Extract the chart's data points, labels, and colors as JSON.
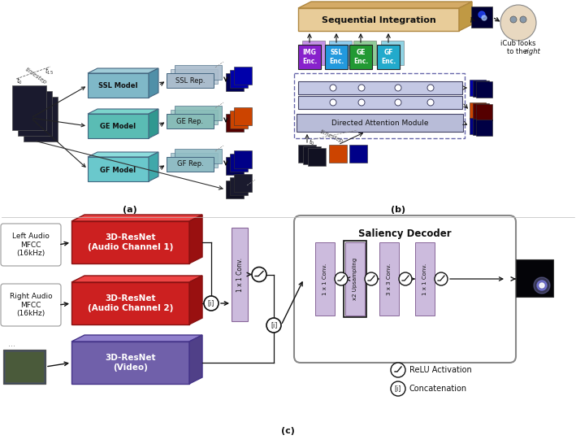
{
  "fig_width": 7.09,
  "fig_height": 5.46,
  "dpi": 100,
  "bg_color": "#ffffff",
  "panel_a": {
    "label": "(a)",
    "model_labels": [
      "SSL Model",
      "GE Model",
      "GF Model"
    ],
    "rep_labels": [
      "SSL Rep.",
      "GE Rep.",
      "GF Rep."
    ],
    "model_face": [
      "#7fb8c8",
      "#5abcb4",
      "#6ac8cc"
    ],
    "model_top": [
      "#a0ccd8",
      "#7cd4cc",
      "#8cdcdc"
    ],
    "model_side": [
      "#5090a8",
      "#309890",
      "#40a8aa"
    ],
    "rep_face": [
      "#aabccc",
      "#88bcb8",
      "#90bcc4"
    ],
    "feat_colors_ssl": [
      "#000044",
      "#000066"
    ],
    "feat_colors_ge": [
      "#660000",
      "#880000"
    ],
    "feat_colors_gf": [
      "#000044",
      "#000066"
    ],
    "feat_colors_img": [
      "#111122",
      "#222233"
    ]
  },
  "panel_b": {
    "label": "(b)",
    "seq_face": "#e8cc99",
    "seq_top": "#d4aa66",
    "seq_side": "#c09944",
    "enc_labels": [
      "IMG\nEnc.",
      "SSL\nEnc.",
      "GE\nEnc.",
      "GF\nEnc."
    ],
    "enc_colors": [
      "#8822cc",
      "#2299dd",
      "#229933",
      "#22aacc"
    ],
    "enc_top": [
      "#aa44ee",
      "#44bbff",
      "#44bb55",
      "#44ccee"
    ],
    "dam_face": "#b8bcd8",
    "lstm_face": "#c8cce8",
    "icub_text1": "iCub looks",
    "icub_text2": "to the",
    "icub_text3": "right"
  },
  "panel_c": {
    "label": "(c)",
    "audio1_label": "3D-ResNet\n(Audio Channel 1)",
    "audio2_label": "3D-ResNet\n(Audio Channel 2)",
    "video_label": "3D-ResNet\n(Video)",
    "audio_face": "#cc2020",
    "audio_top": "#ee4444",
    "audio_side": "#991010",
    "video_face": "#7060aa",
    "video_top": "#9080cc",
    "video_side": "#504088",
    "left_audio_text": "Left Audio\nMFCC\n(16kHz)",
    "right_audio_text": "Right Audio\nMFCC\n(16kHz)",
    "conv1x1_label": "1 x 1 Conv.",
    "decoder_label": "Saliency Decoder",
    "decoder_blocks": [
      "1 x 1 Conv.",
      "x2 Upsampling",
      "3 x 3 Conv.",
      "1 x 1 Conv."
    ],
    "decoder_color": "#ccbbdd",
    "relu_label": "ReLU Activation",
    "concat_label": "Concatenation"
  }
}
